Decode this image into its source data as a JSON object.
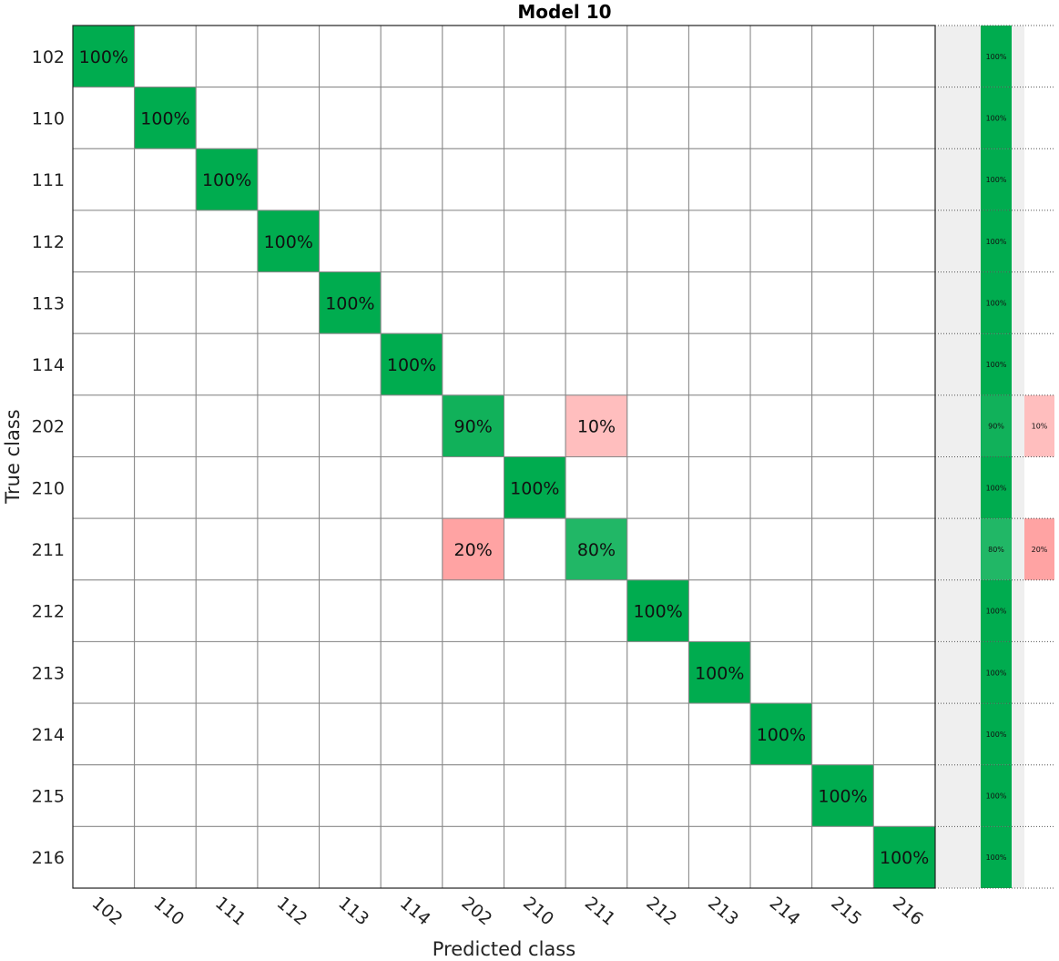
{
  "chart_data": {
    "type": "heatmap",
    "title": "Model 10",
    "xlabel": "Predicted class",
    "ylabel": "True class",
    "classes": [
      "102",
      "110",
      "111",
      "112",
      "113",
      "114",
      "202",
      "210",
      "211",
      "212",
      "213",
      "214",
      "215",
      "216"
    ],
    "values_percent": [
      [
        100,
        0,
        0,
        0,
        0,
        0,
        0,
        0,
        0,
        0,
        0,
        0,
        0,
        0
      ],
      [
        0,
        100,
        0,
        0,
        0,
        0,
        0,
        0,
        0,
        0,
        0,
        0,
        0,
        0
      ],
      [
        0,
        0,
        100,
        0,
        0,
        0,
        0,
        0,
        0,
        0,
        0,
        0,
        0,
        0
      ],
      [
        0,
        0,
        0,
        100,
        0,
        0,
        0,
        0,
        0,
        0,
        0,
        0,
        0,
        0
      ],
      [
        0,
        0,
        0,
        0,
        100,
        0,
        0,
        0,
        0,
        0,
        0,
        0,
        0,
        0
      ],
      [
        0,
        0,
        0,
        0,
        0,
        100,
        0,
        0,
        0,
        0,
        0,
        0,
        0,
        0
      ],
      [
        0,
        0,
        0,
        0,
        0,
        0,
        90,
        0,
        10,
        0,
        0,
        0,
        0,
        0
      ],
      [
        0,
        0,
        0,
        0,
        0,
        0,
        0,
        100,
        0,
        0,
        0,
        0,
        0,
        0
      ],
      [
        0,
        0,
        0,
        0,
        0,
        0,
        20,
        0,
        80,
        0,
        0,
        0,
        0,
        0
      ],
      [
        0,
        0,
        0,
        0,
        0,
        0,
        0,
        0,
        0,
        100,
        0,
        0,
        0,
        0
      ],
      [
        0,
        0,
        0,
        0,
        0,
        0,
        0,
        0,
        0,
        0,
        100,
        0,
        0,
        0
      ],
      [
        0,
        0,
        0,
        0,
        0,
        0,
        0,
        0,
        0,
        0,
        0,
        100,
        0,
        0
      ],
      [
        0,
        0,
        0,
        0,
        0,
        0,
        0,
        0,
        0,
        0,
        0,
        0,
        100,
        0
      ],
      [
        0,
        0,
        0,
        0,
        0,
        0,
        0,
        0,
        0,
        0,
        0,
        0,
        0,
        100
      ]
    ],
    "row_summary": {
      "correct_percent": [
        100,
        100,
        100,
        100,
        100,
        100,
        90,
        100,
        80,
        100,
        100,
        100,
        100,
        100
      ],
      "incorrect_percent": [
        0,
        0,
        0,
        0,
        0,
        0,
        10,
        0,
        20,
        0,
        0,
        0,
        0,
        0
      ]
    },
    "colors": {
      "correct": "#00ac4f",
      "incorrect": "#ff6b6b",
      "grid": "#888888",
      "summary_bg": "#efefef"
    }
  }
}
